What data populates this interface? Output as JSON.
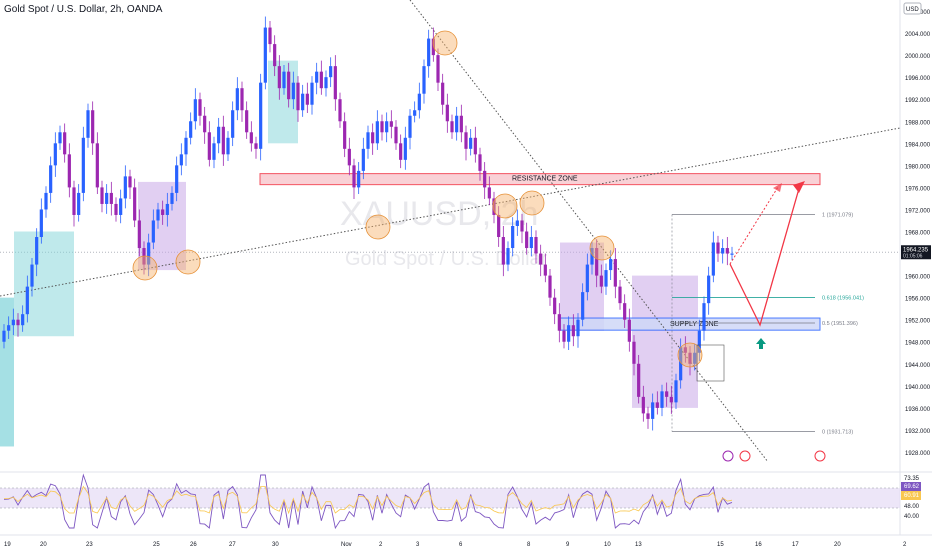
{
  "header": {
    "title": "Gold Spot / U.S. Dollar, 2h, OANDA",
    "currency": "USD"
  },
  "watermark": {
    "symbol": "XAUUSD, 2h",
    "name": "Gold Spot / U.S. Dollar"
  },
  "colors": {
    "up": "#2962ff",
    "down": "#9c27b0",
    "background": "#ffffff",
    "resistance_fill": "#f8c9d0",
    "supply_fill": "#cfd8f7",
    "cloud_teal": "#7fd3d8",
    "cloud_purple": "#c9a7e8",
    "circle": "#f6b26b",
    "fib": "#787b86",
    "fib_618": "#26a69a",
    "projection": "#f23645",
    "rsi_line": "#7e57c2",
    "rsi_ma": "#f9c74f"
  },
  "chart_data": {
    "type": "candlestick",
    "symbol": "XAUUSD",
    "timeframe": "2h",
    "y_axis": {
      "ticks": [
        2008,
        2004,
        2000,
        1996,
        1992,
        1988,
        1984,
        1980,
        1976,
        1972,
        1968,
        1964,
        1960,
        1956,
        1952,
        1948,
        1944,
        1940,
        1936,
        1932,
        1928
      ],
      "tick_labels": [
        "2008.000",
        "2004.000",
        "2000.000",
        "1996.000",
        "1992.000",
        "1988.000",
        "1984.000",
        "1980.000",
        "1976.000",
        "1972.000",
        "1968.000",
        "1964.000",
        "1960.000",
        "1956.000",
        "1952.000",
        "1948.000",
        "1944.000",
        "1940.000",
        "1936.000",
        "1932.000",
        "1928.000"
      ],
      "range": [
        1926,
        2010
      ]
    },
    "x_axis": {
      "labels": [
        "19",
        "20",
        "23",
        "25",
        "26",
        "27",
        "30",
        "Nov",
        "2",
        "3",
        "6",
        "8",
        "9",
        "10",
        "13",
        "15",
        "16",
        "17",
        "20",
        "2"
      ]
    },
    "current_price": "1964.235",
    "countdown": "01:05:06",
    "candles_close": [
      1950,
      1951,
      1952,
      1951,
      1953,
      1958,
      1962,
      1967,
      1972,
      1975,
      1980,
      1984,
      1986,
      1982,
      1976,
      1971,
      1975,
      1985,
      1990,
      1984,
      1976,
      1973,
      1975,
      1973,
      1971,
      1974,
      1978,
      1976,
      1970,
      1965,
      1962,
      1966,
      1970,
      1972,
      1971,
      1973,
      1975,
      1980,
      1982,
      1985,
      1988,
      1992,
      1989,
      1986,
      1981,
      1984,
      1987,
      1982,
      1985,
      1990,
      1994,
      1990,
      1986,
      1984,
      1983,
      1995,
      2005,
      2002,
      1998,
      1994,
      1997,
      1992,
      1995,
      1990,
      1993,
      1991,
      1995,
      1997,
      1994,
      1996,
      1998,
      1992,
      1988,
      1983,
      1980,
      1976,
      1979,
      1983,
      1986,
      1984,
      1988,
      1986,
      1988,
      1987,
      1984,
      1981,
      1985,
      1989,
      1990,
      1993,
      1998,
      2003,
      2000,
      1995,
      1991,
      1988,
      1986,
      1989,
      1986,
      1983,
      1985,
      1982,
      1979,
      1976,
      1974,
      1971,
      1967,
      1962,
      1965,
      1969,
      1970,
      1968,
      1965,
      1967,
      1964,
      1962,
      1960,
      1956,
      1953,
      1950,
      1948,
      1951,
      1949,
      1952,
      1957,
      1962,
      1965,
      1960,
      1958,
      1961,
      1963,
      1958,
      1955,
      1952,
      1948,
      1944,
      1938,
      1935,
      1934,
      1937,
      1936,
      1939,
      1938,
      1937,
      1941,
      1947,
      1946,
      1944,
      1946,
      1950,
      1955,
      1960,
      1966,
      1964,
      1965,
      1964,
      1964
    ],
    "candles_open": [
      1948,
      1950,
      1951,
      1952,
      1951,
      1953,
      1958,
      1962,
      1967,
      1972,
      1975,
      1980,
      1984,
      1986,
      1982,
      1976,
      1971,
      1975,
      1985,
      1990,
      1984,
      1976,
      1973,
      1975,
      1973,
      1971,
      1974,
      1978,
      1976,
      1970,
      1965,
      1962,
      1966,
      1970,
      1972,
      1971,
      1973,
      1975,
      1980,
      1982,
      1985,
      1988,
      1992,
      1989,
      1986,
      1981,
      1984,
      1987,
      1982,
      1985,
      1990,
      1994,
      1990,
      1986,
      1984,
      1983,
      1995,
      2005,
      2002,
      1998,
      1994,
      1997,
      1992,
      1995,
      1990,
      1993,
      1991,
      1995,
      1997,
      1994,
      1996,
      1998,
      1992,
      1988,
      1983,
      1980,
      1976,
      1979,
      1983,
      1986,
      1984,
      1988,
      1986,
      1988,
      1987,
      1984,
      1981,
      1985,
      1989,
      1990,
      1993,
      1998,
      2003,
      2000,
      1995,
      1991,
      1988,
      1986,
      1989,
      1986,
      1983,
      1985,
      1982,
      1979,
      1976,
      1974,
      1971,
      1967,
      1962,
      1965,
      1969,
      1970,
      1968,
      1965,
      1967,
      1964,
      1962,
      1960,
      1956,
      1953,
      1950,
      1948,
      1951,
      1949,
      1952,
      1957,
      1962,
      1965,
      1960,
      1958,
      1961,
      1963,
      1958,
      1955,
      1952,
      1948,
      1944,
      1938,
      1935,
      1934,
      1937,
      1936,
      1939,
      1938,
      1937,
      1941,
      1947,
      1946,
      1944,
      1946,
      1950,
      1955,
      1960,
      1966,
      1964,
      1965,
      1964
    ],
    "annotations": {
      "resistance_zone": {
        "label": "RESISTANCE ZONE",
        "top": 1978.5,
        "bottom": 1976.5
      },
      "supply_zone": {
        "label": "SUPPLY ZONE",
        "top": 1952.3,
        "bottom": 1950.1
      }
    },
    "fibonacci": [
      {
        "level": "1",
        "price": 1971.079,
        "label": "1 (1971.079)"
      },
      {
        "level": "0.618",
        "price": 1956.041,
        "label": "0.618 (1956.041)"
      },
      {
        "level": "0.5",
        "price": 1951.396,
        "label": "0.5 (1951.396)"
      },
      {
        "level": "0",
        "price": 1931.713,
        "label": "0 (1931.713)"
      }
    ],
    "rsi": {
      "tick_labels": [
        "73.35",
        "69.62",
        "60.91",
        "48.00",
        "40.00"
      ],
      "range": [
        30,
        80
      ]
    }
  }
}
